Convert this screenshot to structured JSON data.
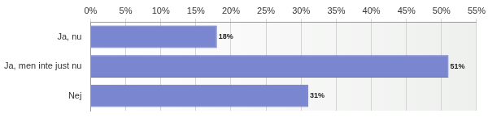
{
  "chart_data": {
    "type": "bar",
    "orientation": "horizontal",
    "categories": [
      "Ja, nu",
      "Ja, men inte just nu",
      "Nej"
    ],
    "values": [
      18,
      51,
      31
    ],
    "value_labels": [
      "18%",
      "51%",
      "31%"
    ],
    "data_labels": true,
    "color": "#7b86d0",
    "xlim": [
      0,
      55
    ],
    "xticks": [
      {
        "value": 0,
        "label": "0%"
      },
      {
        "value": 5,
        "label": "5%"
      },
      {
        "value": 10,
        "label": "10%"
      },
      {
        "value": 15,
        "label": "15%"
      },
      {
        "value": 20,
        "label": "20%"
      },
      {
        "value": 25,
        "label": "25%"
      },
      {
        "value": 30,
        "label": "30%"
      },
      {
        "value": 35,
        "label": "35%"
      },
      {
        "value": 40,
        "label": "40%"
      },
      {
        "value": 45,
        "label": "45%"
      },
      {
        "value": 50,
        "label": "50%"
      },
      {
        "value": 55,
        "label": "55%"
      }
    ],
    "grid": true
  }
}
